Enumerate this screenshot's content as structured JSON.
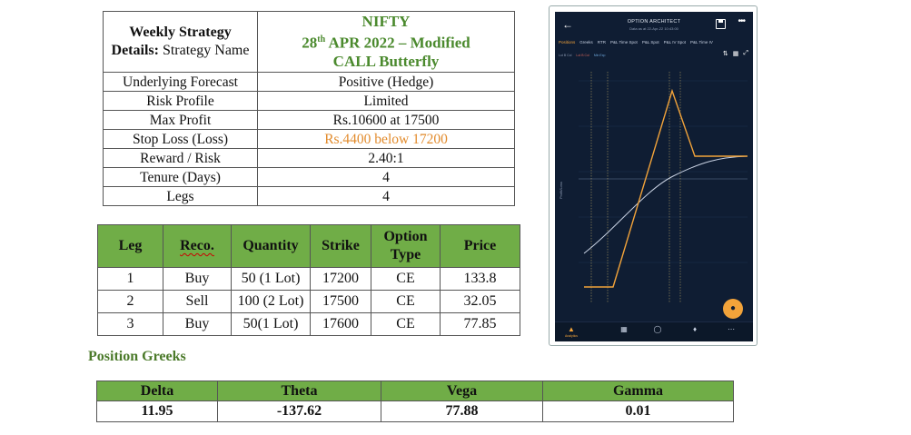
{
  "strategy": {
    "title_label": "Weekly Strategy Details:",
    "title_sub": " Strategy Name",
    "name_line1": "NIFTY",
    "name_line2_day": "28",
    "name_line2_sup": "th",
    "name_line2_rest": " APR 2022 – Modified",
    "name_line3": "CALL Butterfly",
    "rows": [
      {
        "label": "Underlying Forecast",
        "value": "Positive (Hedge)"
      },
      {
        "label": "Risk Profile",
        "value": "Limited"
      },
      {
        "label": "Max Profit",
        "value": "Rs.10600 at 17500"
      },
      {
        "label": "Stop Loss (Loss)",
        "value": "Rs.4400 below 17200"
      },
      {
        "label": "Reward / Risk",
        "value": "2.40:1"
      },
      {
        "label": "Tenure (Days)",
        "value": "4"
      },
      {
        "label": "Legs",
        "value": "4"
      }
    ]
  },
  "legs_table": {
    "headers": [
      "Leg",
      "Reco.",
      "Quantity",
      "Strike",
      "Option Type",
      "Price"
    ],
    "rows": [
      [
        "1",
        "Buy",
        "50 (1 Lot)",
        "17200",
        "CE",
        "133.8"
      ],
      [
        "2",
        "Sell",
        "100 (2 Lot)",
        "17500",
        "CE",
        "32.05"
      ],
      [
        "3",
        "Buy",
        "50(1 Lot)",
        "17600",
        "CE",
        "77.85"
      ]
    ]
  },
  "greeks": {
    "title": "Position Greeks",
    "headers": [
      "Delta",
      "Theta",
      "Vega",
      "Gamma"
    ],
    "values": [
      "11.95",
      "-137.62",
      "77.88",
      "0.01"
    ]
  },
  "phone": {
    "back_icon": "arrow-left-icon",
    "app_title": "OPTION ARCHITECT",
    "app_subtitle": "Data as at 22-Apr-22 10:43:00",
    "tabs": [
      "Positions",
      "Greeks",
      "RTR",
      "P&L Time Spot",
      "P&L Spot",
      "P&L IV Spot",
      "P&L Time IV"
    ],
    "active_tab": 0,
    "legend": [
      "Lot B  Col",
      "Lot B  Col",
      "Min Exp"
    ],
    "bottom_label": "Analytics",
    "colors": {
      "background": "#0f1d33",
      "payoff_line": "#f2a33a",
      "current_line": "#c9d2e3",
      "accent": "#f2a33a"
    }
  }
}
